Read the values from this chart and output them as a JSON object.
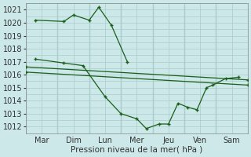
{
  "background_color": "#cce8e8",
  "grid_color": "#aacccc",
  "line_color": "#1a5e1a",
  "xlabel": "Pression niveau de la mer( hPa )",
  "ylim": [
    1011.5,
    1021.5
  ],
  "yticks": [
    1012,
    1013,
    1014,
    1015,
    1016,
    1017,
    1018,
    1019,
    1020,
    1021
  ],
  "x_labels": [
    "Mar",
    "Dim",
    "Lun",
    "Mer",
    "Jeu",
    "Ven",
    "Sam"
  ],
  "x_ticks": [
    0.5,
    1.5,
    2.5,
    3.5,
    4.5,
    5.5,
    6.5
  ],
  "x_dividers": [
    0,
    1,
    2,
    3,
    4,
    5,
    6,
    7
  ],
  "xlim": [
    0,
    7
  ],
  "series": [
    {
      "x": [
        0.3,
        1.2,
        1.5,
        2.0,
        2.3,
        2.7,
        3.2
      ],
      "y": [
        1020.2,
        1020.1,
        1020.6,
        1020.2,
        1021.2,
        1019.8,
        1017.0
      ]
    },
    {
      "x": [
        0.3,
        1.2,
        1.8,
        2.5,
        3.0,
        3.5,
        3.8,
        4.2,
        4.5,
        4.8,
        5.1,
        5.4,
        5.7,
        5.9,
        6.3,
        6.7
      ],
      "y": [
        1017.2,
        1016.9,
        1016.7,
        1014.3,
        1013.0,
        1012.6,
        1011.85,
        1012.2,
        1012.2,
        1013.8,
        1013.5,
        1013.3,
        1015.0,
        1015.2,
        1015.7,
        1015.8
      ]
    },
    {
      "x": [
        0.0,
        7.0
      ],
      "y": [
        1016.6,
        1015.6
      ]
    },
    {
      "x": [
        0.0,
        7.0
      ],
      "y": [
        1016.2,
        1015.2
      ]
    }
  ]
}
